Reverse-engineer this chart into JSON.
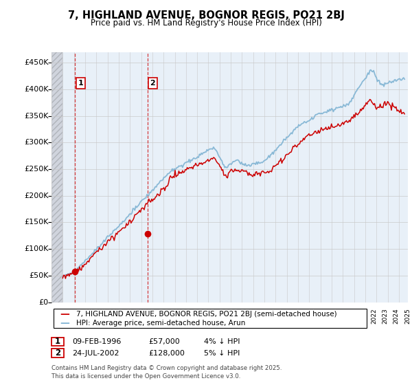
{
  "title": "7, HIGHLAND AVENUE, BOGNOR REGIS, PO21 2BJ",
  "subtitle": "Price paid vs. HM Land Registry's House Price Index (HPI)",
  "ylim": [
    0,
    470000
  ],
  "yticks": [
    0,
    50000,
    100000,
    150000,
    200000,
    250000,
    300000,
    350000,
    400000,
    450000
  ],
  "ytick_labels": [
    "£0",
    "£50K",
    "£100K",
    "£150K",
    "£200K",
    "£250K",
    "£300K",
    "£350K",
    "£400K",
    "£450K"
  ],
  "xlim_start": 1994.0,
  "xlim_end": 2025.8,
  "hatch_end": 1995.0,
  "transaction1_date": 1996.1,
  "transaction1_price": 57000,
  "transaction1_label": "1",
  "transaction2_date": 2002.55,
  "transaction2_price": 128000,
  "transaction2_label": "2",
  "legend_line1": "7, HIGHLAND AVENUE, BOGNOR REGIS, PO21 2BJ (semi-detached house)",
  "legend_line2": "HPI: Average price, semi-detached house, Arun",
  "row1_num": "1",
  "row1_date": "09-FEB-1996",
  "row1_price": "£57,000",
  "row1_hpi": "4% ↓ HPI",
  "row2_num": "2",
  "row2_date": "24-JUL-2002",
  "row2_price": "£128,000",
  "row2_hpi": "5% ↓ HPI",
  "footer": "Contains HM Land Registry data © Crown copyright and database right 2025.\nThis data is licensed under the Open Government Licence v3.0.",
  "hpi_color": "#7fb3d3",
  "price_color": "#cc0000",
  "dashed_line_color": "#cc0000",
  "chart_bg_color": "#e8f0f8",
  "grid_color": "#c8c8c8",
  "background_color": "#ffffff",
  "label_box_color": "#cc0000"
}
